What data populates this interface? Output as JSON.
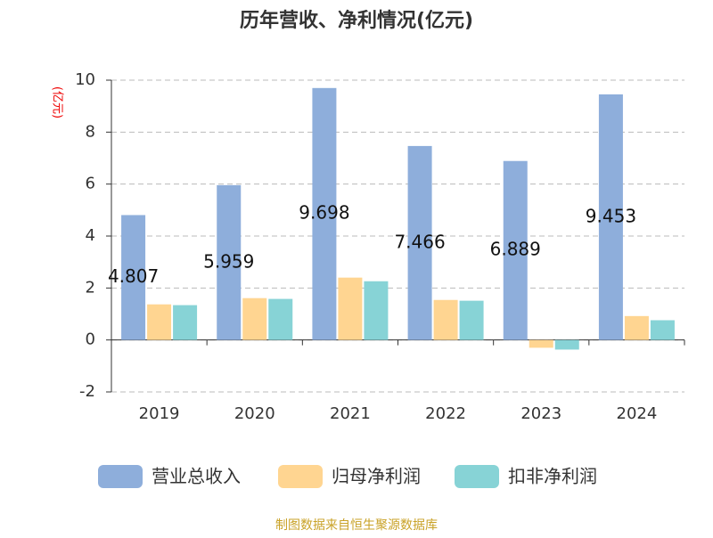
{
  "chart_data": {
    "type": "bar",
    "title": "历年营收、净利情况(亿元)",
    "y_label": "(亿元)",
    "categories": [
      "2019",
      "2020",
      "2021",
      "2022",
      "2023",
      "2024"
    ],
    "series": [
      {
        "name": "营业总收入",
        "color": "#8eaedb",
        "values": [
          4.807,
          5.959,
          9.698,
          7.466,
          6.889,
          9.453
        ],
        "show_labels": true
      },
      {
        "name": "归母净利润",
        "color": "#ffd591",
        "values": [
          1.37,
          1.61,
          2.4,
          1.54,
          -0.3,
          0.92
        ]
      },
      {
        "name": "扣非净利润",
        "color": "#87d3d6",
        "values": [
          1.34,
          1.58,
          2.26,
          1.51,
          -0.37,
          0.76
        ]
      }
    ],
    "ylim": [
      -2,
      10
    ],
    "yticks": [
      -2,
      0,
      2,
      4,
      6,
      8,
      10
    ],
    "grid": true,
    "source": "制图数据来自恒生聚源数据库"
  }
}
